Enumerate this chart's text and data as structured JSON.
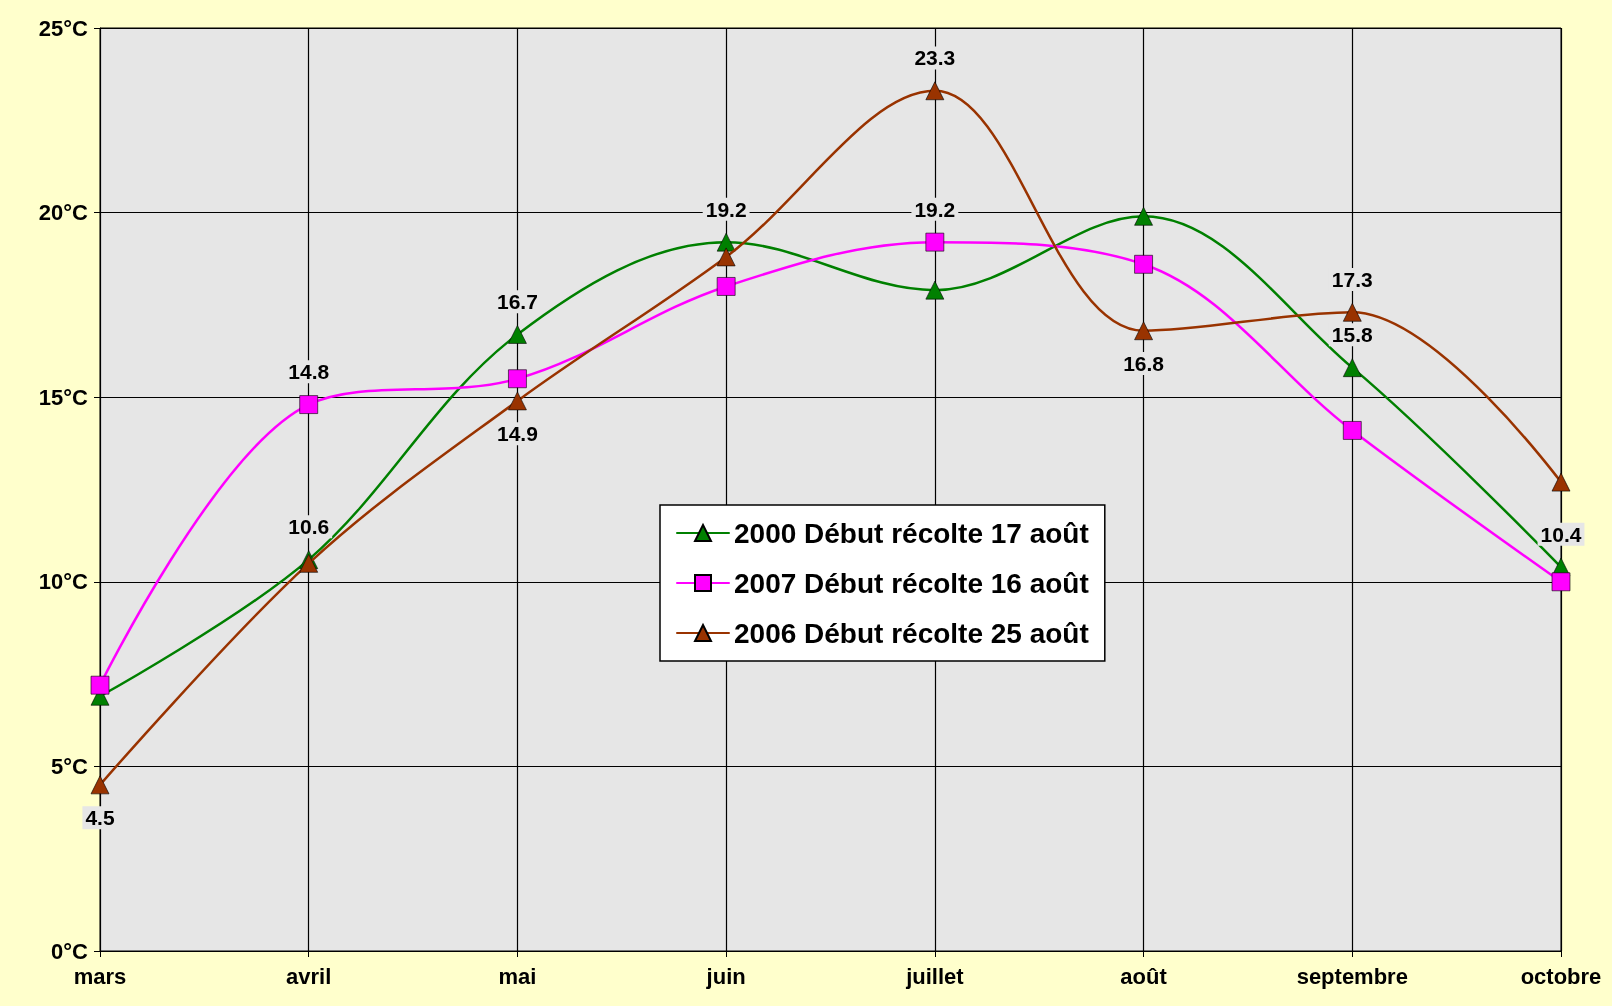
{
  "chart_data": {
    "type": "line",
    "categories": [
      "mars",
      "avril",
      "mai",
      "juin",
      "juillet",
      "août",
      "septembre",
      "octobre"
    ],
    "ylim": [
      0,
      25
    ],
    "yticks": [
      {
        "value": 0,
        "label": "0°C"
      },
      {
        "value": 5,
        "label": "5°C"
      },
      {
        "value": 10,
        "label": "10°C"
      },
      {
        "value": 15,
        "label": "15°C"
      },
      {
        "value": 20,
        "label": "20°C"
      },
      {
        "value": 25,
        "label": "25°C"
      }
    ],
    "grid": true,
    "legend": "center",
    "series": [
      {
        "name": "2000 Début récolte 17 août",
        "color": "#008000",
        "marker": "triangle",
        "values": [
          6.9,
          10.6,
          16.7,
          19.2,
          17.9,
          19.9,
          15.8,
          10.4
        ],
        "value_labels": [
          null,
          "10.6",
          "16.7",
          "19.2",
          null,
          null,
          "15.8",
          "10.4"
        ]
      },
      {
        "name": "2007 Début récolte 16 août",
        "color": "#ff00ff",
        "marker": "square",
        "values": [
          7.2,
          14.8,
          15.5,
          18.0,
          19.2,
          18.6,
          14.1,
          10.0
        ],
        "value_labels": [
          null,
          "14.8",
          null,
          null,
          "19.2",
          null,
          null,
          null
        ]
      },
      {
        "name": "2006 Début récolte 25 août",
        "color": "#993300",
        "marker": "triangle",
        "values": [
          4.5,
          10.5,
          14.9,
          18.8,
          23.3,
          16.8,
          17.3,
          12.7
        ],
        "value_labels": [
          "4.5",
          null,
          "14.9",
          null,
          "23.3",
          "16.8",
          "17.3",
          null
        ]
      }
    ]
  }
}
